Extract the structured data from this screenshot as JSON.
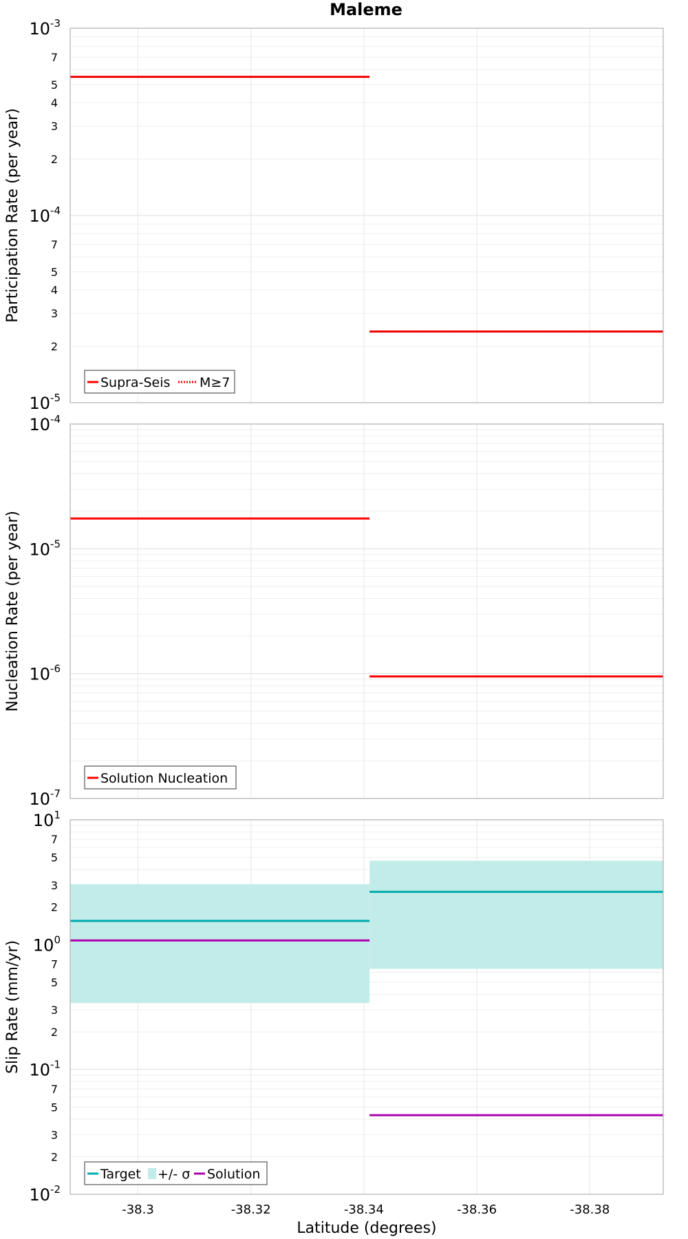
{
  "title": "Maleme",
  "xlabel": "Latitude (degrees)",
  "x_ticks": [
    "-38.3",
    "-38.32",
    "-38.34",
    "-38.36",
    "-38.38"
  ],
  "chart_data": [
    {
      "type": "line",
      "ylabel": "Participation Rate (per year)",
      "yscale": "log",
      "ylim": [
        1e-05,
        0.001
      ],
      "xlim": [
        -38.288,
        -38.393
      ],
      "y_major_ticks": [
        {
          "base": "10",
          "exp": "-3"
        },
        {
          "base": "10",
          "exp": "-4"
        },
        {
          "base": "10",
          "exp": "-5"
        }
      ],
      "y_minor_ticks": [
        "7",
        "5",
        "4",
        "3",
        "2",
        "7",
        "5",
        "4",
        "3",
        "2"
      ],
      "series": [
        {
          "name": "Supra-Seis",
          "color": "#ff0000",
          "style": "solid",
          "segments": [
            {
              "x": [
                -38.288,
                -38.341
              ],
              "y": 0.00055
            },
            {
              "x": [
                -38.341,
                -38.393
              ],
              "y": 2.4e-05
            }
          ]
        },
        {
          "name": "M≥7",
          "color": "#ff0000",
          "style": "dotted",
          "segments": [
            {
              "x": [
                -38.288,
                -38.341
              ],
              "y": 0.00055
            },
            {
              "x": [
                -38.341,
                -38.393
              ],
              "y": 2.4e-05
            }
          ]
        }
      ],
      "legend": {
        "location": "bottom-left",
        "items": [
          "Supra-Seis",
          "M≥7"
        ]
      }
    },
    {
      "type": "line",
      "ylabel": "Nucleation Rate (per year)",
      "yscale": "log",
      "ylim": [
        1e-07,
        0.0001
      ],
      "xlim": [
        -38.288,
        -38.393
      ],
      "y_major_ticks": [
        {
          "base": "10",
          "exp": "-4"
        },
        {
          "base": "10",
          "exp": "-5"
        },
        {
          "base": "10",
          "exp": "-6"
        },
        {
          "base": "10",
          "exp": "-7"
        }
      ],
      "series": [
        {
          "name": "Solution Nucleation",
          "color": "#ff0000",
          "style": "solid",
          "segments": [
            {
              "x": [
                -38.288,
                -38.341
              ],
              "y": 1.75e-05
            },
            {
              "x": [
                -38.341,
                -38.393
              ],
              "y": 9.5e-07
            }
          ]
        }
      ],
      "legend": {
        "location": "bottom-left",
        "items": [
          "Solution Nucleation"
        ]
      }
    },
    {
      "type": "line",
      "ylabel": "Slip Rate (mm/yr)",
      "yscale": "log",
      "ylim": [
        0.01,
        10
      ],
      "xlim": [
        -38.288,
        -38.393
      ],
      "y_major_ticks": [
        {
          "base": "10",
          "exp": "1"
        },
        {
          "base": "10",
          "exp": "0"
        },
        {
          "base": "10",
          "exp": "-1"
        },
        {
          "base": "10",
          "exp": "-2"
        }
      ],
      "y_minor_ticks": [
        "7",
        "5",
        "3",
        "2",
        "7",
        "5",
        "3",
        "2",
        "7",
        "5",
        "3",
        "2"
      ],
      "series": [
        {
          "name": "Target",
          "color": "#00aaaa",
          "style": "solid",
          "segments": [
            {
              "x": [
                -38.288,
                -38.341
              ],
              "y": 1.55
            },
            {
              "x": [
                -38.341,
                -38.393
              ],
              "y": 2.65
            }
          ]
        },
        {
          "name": "+/- σ",
          "color": "#c2ecea",
          "style": "band",
          "segments": [
            {
              "x": [
                -38.288,
                -38.341
              ],
              "low": 0.34,
              "high": 3.05
            },
            {
              "x": [
                -38.341,
                -38.393
              ],
              "low": 0.64,
              "high": 4.7
            }
          ]
        },
        {
          "name": "Solution",
          "color": "#aa00aa",
          "style": "solid",
          "segments": [
            {
              "x": [
                -38.288,
                -38.341
              ],
              "y": 1.08
            },
            {
              "x": [
                -38.341,
                -38.393
              ],
              "y": 0.043
            }
          ]
        }
      ],
      "legend": {
        "location": "bottom-left",
        "items": [
          "Target",
          "+/- σ",
          "Solution"
        ]
      }
    }
  ]
}
